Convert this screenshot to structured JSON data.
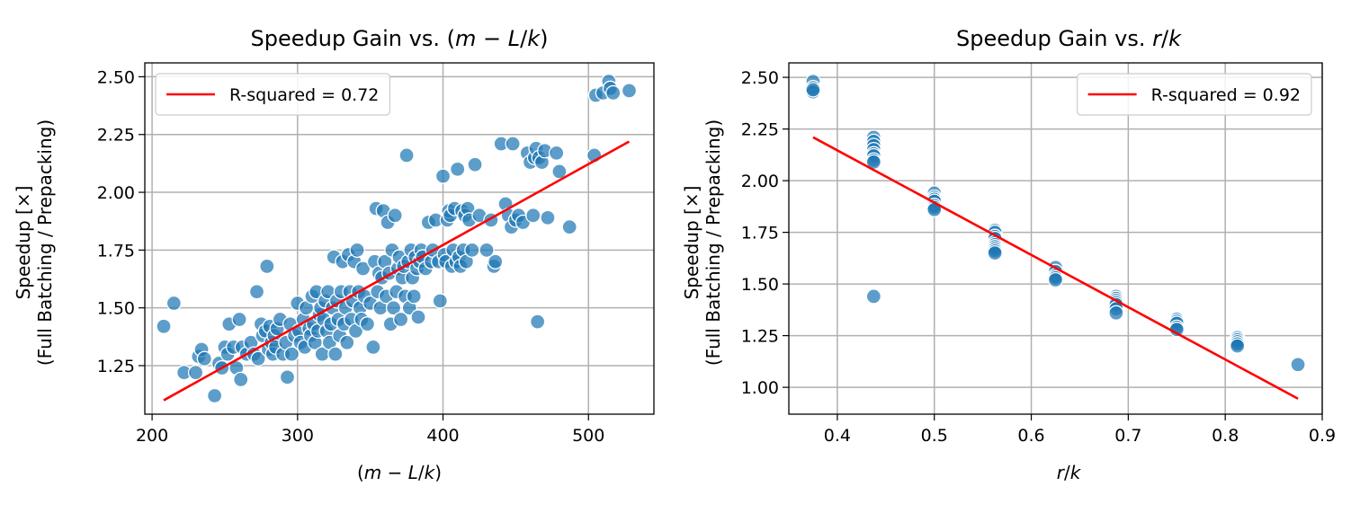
{
  "chart_data": [
    {
      "type": "scatter",
      "title": "Speedup Gain vs. (m − L/k)",
      "xlabel": "(m − L/k)",
      "ylabel": [
        "Speedup [×]",
        "(Full Batching / Prepacking)"
      ],
      "xlim": [
        195,
        545
      ],
      "ylim": [
        1.04,
        2.56
      ],
      "xticks": [
        200,
        300,
        400,
        500
      ],
      "yticks": [
        1.25,
        1.5,
        1.75,
        2.0,
        2.25,
        2.5
      ],
      "xtick_labels": [
        "200",
        "300",
        "400",
        "500"
      ],
      "ytick_labels": [
        "1.25",
        "1.50",
        "1.75",
        "2.00",
        "2.25",
        "2.50"
      ],
      "grid": true,
      "legend_position": "top-left",
      "legend": [
        "R-squared = 0.72"
      ],
      "point_color": "#1f77b4",
      "fit_color": "#ff0000",
      "fit_line": {
        "x": [
          208,
          528
        ],
        "y": [
          1.1,
          2.22
        ]
      },
      "points": [
        [
          208,
          1.42
        ],
        [
          215,
          1.52
        ],
        [
          222,
          1.22
        ],
        [
          230,
          1.22
        ],
        [
          232,
          1.29
        ],
        [
          234,
          1.32
        ],
        [
          236,
          1.28
        ],
        [
          243,
          1.12
        ],
        [
          246,
          1.26
        ],
        [
          248,
          1.24
        ],
        [
          250,
          1.33
        ],
        [
          252,
          1.3
        ],
        [
          253,
          1.43
        ],
        [
          256,
          1.33
        ],
        [
          258,
          1.24
        ],
        [
          260,
          1.45
        ],
        [
          261,
          1.19
        ],
        [
          262,
          1.33
        ],
        [
          265,
          1.3
        ],
        [
          268,
          1.35
        ],
        [
          270,
          1.3
        ],
        [
          272,
          1.57
        ],
        [
          273,
          1.28
        ],
        [
          275,
          1.43
        ],
        [
          276,
          1.38
        ],
        [
          278,
          1.4
        ],
        [
          279,
          1.68
        ],
        [
          280,
          1.32
        ],
        [
          281,
          1.42
        ],
        [
          282,
          1.35
        ],
        [
          283,
          1.3
        ],
        [
          284,
          1.38
        ],
        [
          285,
          1.33
        ],
        [
          286,
          1.41
        ],
        [
          288,
          1.45
        ],
        [
          290,
          1.3
        ],
        [
          292,
          1.35
        ],
        [
          293,
          1.2
        ],
        [
          295,
          1.43
        ],
        [
          296,
          1.3
        ],
        [
          298,
          1.38
        ],
        [
          300,
          1.52
        ],
        [
          301,
          1.4
        ],
        [
          302,
          1.35
        ],
        [
          304,
          1.45
        ],
        [
          305,
          1.33
        ],
        [
          306,
          1.5
        ],
        [
          308,
          1.41
        ],
        [
          309,
          1.38
        ],
        [
          310,
          1.55
        ],
        [
          311,
          1.43
        ],
        [
          312,
          1.35
        ],
        [
          313,
          1.57
        ],
        [
          314,
          1.4
        ],
        [
          315,
          1.47
        ],
        [
          316,
          1.5
        ],
        [
          317,
          1.3
        ],
        [
          318,
          1.45
        ],
        [
          319,
          1.53
        ],
        [
          320,
          1.4
        ],
        [
          321,
          1.57
        ],
        [
          322,
          1.35
        ],
        [
          323,
          1.43
        ],
        [
          324,
          1.5
        ],
        [
          325,
          1.72
        ],
        [
          326,
          1.3
        ],
        [
          327,
          1.53
        ],
        [
          328,
          1.45
        ],
        [
          329,
          1.38
        ],
        [
          330,
          1.57
        ],
        [
          331,
          1.7
        ],
        [
          332,
          1.43
        ],
        [
          333,
          1.5
        ],
        [
          334,
          1.35
        ],
        [
          335,
          1.73
        ],
        [
          336,
          1.57
        ],
        [
          337,
          1.45
        ],
        [
          338,
          1.53
        ],
        [
          339,
          1.7
        ],
        [
          340,
          1.4
        ],
        [
          341,
          1.75
        ],
        [
          342,
          1.57
        ],
        [
          343,
          1.5
        ],
        [
          344,
          1.45
        ],
        [
          345,
          1.67
        ],
        [
          346,
          1.55
        ],
        [
          348,
          1.43
        ],
        [
          350,
          1.52
        ],
        [
          352,
          1.33
        ],
        [
          353,
          1.7
        ],
        [
          354,
          1.93
        ],
        [
          355,
          1.57
        ],
        [
          356,
          1.65
        ],
        [
          357,
          1.5
        ],
        [
          358,
          1.63
        ],
        [
          359,
          1.92
        ],
        [
          360,
          1.7
        ],
        [
          361,
          1.55
        ],
        [
          362,
          1.87
        ],
        [
          363,
          1.65
        ],
        [
          364,
          1.43
        ],
        [
          365,
          1.75
        ],
        [
          366,
          1.5
        ],
        [
          367,
          1.9
        ],
        [
          368,
          1.57
        ],
        [
          369,
          1.67
        ],
        [
          370,
          1.72
        ],
        [
          371,
          1.45
        ],
        [
          372,
          1.63
        ],
        [
          373,
          1.68
        ],
        [
          374,
          1.55
        ],
        [
          375,
          2.16
        ],
        [
          376,
          1.7
        ],
        [
          377,
          1.5
        ],
        [
          378,
          1.75
        ],
        [
          379,
          1.63
        ],
        [
          380,
          1.55
        ],
        [
          381,
          1.72
        ],
        [
          382,
          1.67
        ],
        [
          383,
          1.46
        ],
        [
          384,
          1.7
        ],
        [
          385,
          1.75
        ],
        [
          386,
          1.72
        ],
        [
          388,
          1.67
        ],
        [
          390,
          1.87
        ],
        [
          392,
          1.7
        ],
        [
          393,
          1.75
        ],
        [
          395,
          1.88
        ],
        [
          397,
          1.7
        ],
        [
          398,
          1.53
        ],
        [
          400,
          2.07
        ],
        [
          401,
          1.73
        ],
        [
          402,
          1.7
        ],
        [
          403,
          1.88
        ],
        [
          404,
          1.92
        ],
        [
          405,
          1.9
        ],
        [
          406,
          1.68
        ],
        [
          407,
          1.75
        ],
        [
          408,
          1.93
        ],
        [
          409,
          1.7
        ],
        [
          410,
          2.1
        ],
        [
          411,
          1.72
        ],
        [
          412,
          1.68
        ],
        [
          413,
          1.92
        ],
        [
          414,
          1.75
        ],
        [
          415,
          1.9
        ],
        [
          416,
          1.7
        ],
        [
          417,
          1.93
        ],
        [
          418,
          1.88
        ],
        [
          420,
          1.75
        ],
        [
          422,
          2.12
        ],
        [
          425,
          1.9
        ],
        [
          430,
          1.75
        ],
        [
          433,
          1.88
        ],
        [
          435,
          1.68
        ],
        [
          436,
          1.7
        ],
        [
          440,
          2.21
        ],
        [
          443,
          1.95
        ],
        [
          445,
          1.9
        ],
        [
          447,
          1.85
        ],
        [
          448,
          2.21
        ],
        [
          450,
          1.88
        ],
        [
          452,
          1.9
        ],
        [
          455,
          1.87
        ],
        [
          458,
          2.17
        ],
        [
          460,
          2.13
        ],
        [
          462,
          1.9
        ],
        [
          463,
          2.15
        ],
        [
          464,
          2.19
        ],
        [
          465,
          1.44
        ],
        [
          466,
          2.15
        ],
        [
          468,
          2.13
        ],
        [
          470,
          2.18
        ],
        [
          472,
          1.89
        ],
        [
          478,
          2.17
        ],
        [
          480,
          2.09
        ],
        [
          487,
          1.85
        ],
        [
          504,
          2.16
        ],
        [
          505,
          2.42
        ],
        [
          510,
          2.43
        ],
        [
          514,
          2.48
        ],
        [
          515,
          2.45
        ],
        [
          517,
          2.43
        ],
        [
          528,
          2.44
        ]
      ]
    },
    {
      "type": "scatter",
      "title": "Speedup Gain vs. r/k",
      "xlabel": "r/k",
      "ylabel": [
        "Speedup [×]",
        "(Full Batching / Prepacking)"
      ],
      "xlim": [
        0.35,
        0.9
      ],
      "ylim": [
        0.87,
        2.57
      ],
      "xticks": [
        0.4,
        0.5,
        0.6,
        0.7,
        0.8,
        0.9
      ],
      "yticks": [
        1.0,
        1.25,
        1.5,
        1.75,
        2.0,
        2.25,
        2.5
      ],
      "xtick_labels": [
        "0.4",
        "0.5",
        "0.6",
        "0.7",
        "0.8",
        "0.9"
      ],
      "ytick_labels": [
        "1.00",
        "1.25",
        "1.50",
        "1.75",
        "2.00",
        "2.25",
        "2.50"
      ],
      "grid": true,
      "legend_position": "top-right",
      "legend": [
        "R-squared = 0.92"
      ],
      "point_color": "#1f77b4",
      "fit_color": "#ff0000",
      "fit_line": {
        "x": [
          0.375,
          0.875
        ],
        "y": [
          2.21,
          0.945
        ]
      },
      "points": [
        [
          0.375,
          2.48
        ],
        [
          0.375,
          2.45
        ],
        [
          0.375,
          2.43
        ],
        [
          0.375,
          2.44
        ],
        [
          0.4375,
          2.21
        ],
        [
          0.4375,
          2.19
        ],
        [
          0.4375,
          2.17
        ],
        [
          0.4375,
          2.15
        ],
        [
          0.4375,
          2.13
        ],
        [
          0.4375,
          2.12
        ],
        [
          0.4375,
          2.1
        ],
        [
          0.4375,
          2.09
        ],
        [
          0.4375,
          1.44
        ],
        [
          0.5,
          1.94
        ],
        [
          0.5,
          1.92
        ],
        [
          0.5,
          1.91
        ],
        [
          0.5,
          1.9
        ],
        [
          0.5,
          1.88
        ],
        [
          0.5,
          1.87
        ],
        [
          0.5,
          1.86
        ],
        [
          0.5625,
          1.76
        ],
        [
          0.5625,
          1.75
        ],
        [
          0.5625,
          1.73
        ],
        [
          0.5625,
          1.72
        ],
        [
          0.5625,
          1.7
        ],
        [
          0.5625,
          1.69
        ],
        [
          0.5625,
          1.68
        ],
        [
          0.5625,
          1.67
        ],
        [
          0.5625,
          1.66
        ],
        [
          0.5625,
          1.65
        ],
        [
          0.625,
          1.58
        ],
        [
          0.625,
          1.56
        ],
        [
          0.625,
          1.54
        ],
        [
          0.625,
          1.53
        ],
        [
          0.625,
          1.52
        ],
        [
          0.6875,
          1.44
        ],
        [
          0.6875,
          1.43
        ],
        [
          0.6875,
          1.42
        ],
        [
          0.6875,
          1.41
        ],
        [
          0.6875,
          1.4
        ],
        [
          0.6875,
          1.38
        ],
        [
          0.6875,
          1.36
        ],
        [
          0.75,
          1.33
        ],
        [
          0.75,
          1.32
        ],
        [
          0.75,
          1.31
        ],
        [
          0.75,
          1.29
        ],
        [
          0.75,
          1.28
        ],
        [
          0.8125,
          1.24
        ],
        [
          0.8125,
          1.23
        ],
        [
          0.8125,
          1.22
        ],
        [
          0.8125,
          1.21
        ],
        [
          0.8125,
          1.2
        ],
        [
          0.875,
          1.11
        ]
      ]
    }
  ]
}
